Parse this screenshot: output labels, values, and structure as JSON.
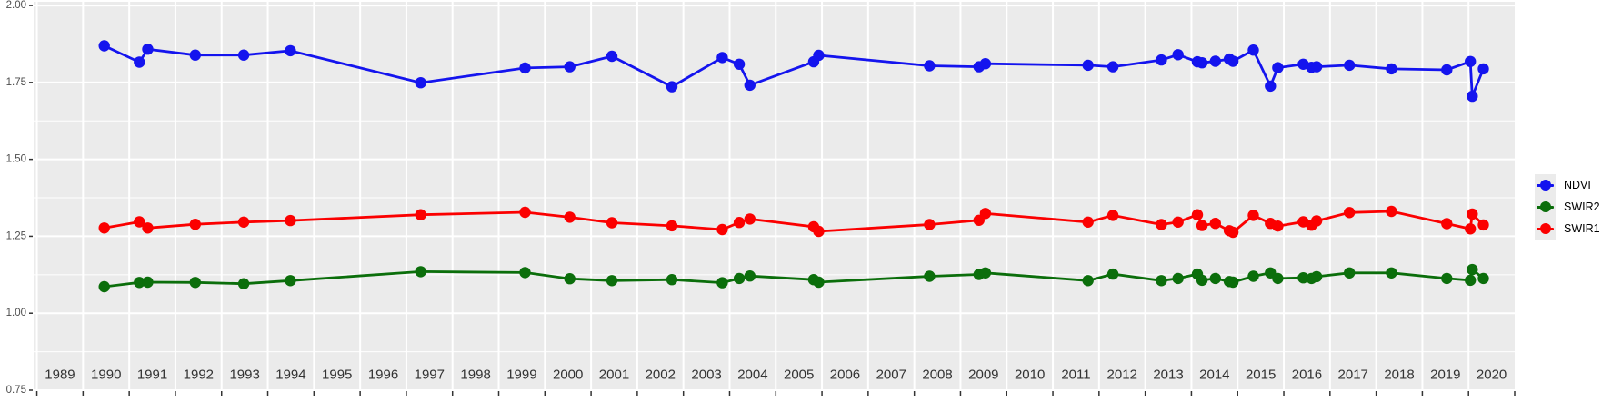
{
  "chart_data": {
    "type": "line",
    "title": "",
    "xlabel": "",
    "ylabel": "",
    "grid": true,
    "legend_position": "right",
    "panel_bg": "#ebebeb",
    "grid_color": "#ffffff",
    "axis_text_color": "#4d4d4d",
    "x_axis_text_color": "#333333",
    "tick_color": "#333333",
    "xlim_years": [
      1988.93,
      2021.0
    ],
    "ylim": [
      0.75,
      2.0
    ],
    "ylim_draw": [
      0.75,
      2.012
    ],
    "x_tick_labels": [
      "1989",
      "1990",
      "1991",
      "1992",
      "1993",
      "1994",
      "1995",
      "1996",
      "1997",
      "1998",
      "1999",
      "2000",
      "2001",
      "2002",
      "2003",
      "2004",
      "2005",
      "2006",
      "2007",
      "2008",
      "2009",
      "2010",
      "2011",
      "2012",
      "2013",
      "2014",
      "2015",
      "2016",
      "2017",
      "2018",
      "2019",
      "2020"
    ],
    "x_boundary_years": [
      1989,
      1990,
      1991,
      1992,
      1993,
      1994,
      1995,
      1996,
      1997,
      1998,
      1999,
      2000,
      2001,
      2002,
      2003,
      2004,
      2005,
      2006,
      2007,
      2008,
      2009,
      2010,
      2011,
      2012,
      2013,
      2014,
      2015,
      2016,
      2017,
      2018,
      2019,
      2020,
      2021
    ],
    "y_tick_values": [
      2.0,
      1.75,
      1.5,
      1.25,
      1.0,
      0.75
    ],
    "y_tick_labels": [
      "2.00",
      "1.75",
      "1.50",
      "1.25",
      "1.00",
      "0.75"
    ],
    "y_minor_values": [
      1.875,
      1.625,
      1.375,
      1.125,
      0.875
    ],
    "x": [
      1990.46,
      1991.22,
      1991.4,
      1992.43,
      1993.48,
      1994.49,
      1997.31,
      1999.57,
      2000.54,
      2001.45,
      2002.75,
      2003.84,
      2004.21,
      2004.44,
      2005.82,
      2005.93,
      2008.33,
      2009.4,
      2009.54,
      2011.76,
      2012.3,
      2013.35,
      2013.71,
      2014.13,
      2014.23,
      2014.52,
      2014.82,
      2014.9,
      2015.34,
      2015.71,
      2015.87,
      2016.42,
      2016.6,
      2016.71,
      2017.42,
      2018.33,
      2019.53,
      2020.04,
      2020.08,
      2020.32
    ],
    "series": [
      {
        "name": "NDVI",
        "color": "#1414ee",
        "values": [
          1.869,
          1.816,
          1.858,
          1.839,
          1.839,
          1.853,
          1.749,
          1.797,
          1.801,
          1.835,
          1.736,
          1.831,
          1.809,
          1.741,
          1.817,
          1.838,
          1.804,
          1.801,
          1.811,
          1.806,
          1.801,
          1.823,
          1.84,
          1.817,
          1.814,
          1.819,
          1.826,
          1.819,
          1.855,
          1.738,
          1.798,
          1.809,
          1.799,
          1.801,
          1.806,
          1.794,
          1.791,
          1.818,
          1.705,
          1.794
        ]
      },
      {
        "name": "SWIR2",
        "color": "#0b6e0b",
        "values": [
          1.086,
          1.1,
          1.101,
          1.1,
          1.096,
          1.106,
          1.135,
          1.132,
          1.112,
          1.106,
          1.109,
          1.099,
          1.113,
          1.121,
          1.109,
          1.101,
          1.12,
          1.126,
          1.131,
          1.106,
          1.127,
          1.106,
          1.113,
          1.127,
          1.107,
          1.113,
          1.103,
          1.101,
          1.12,
          1.131,
          1.113,
          1.115,
          1.113,
          1.119,
          1.131,
          1.131,
          1.113,
          1.107,
          1.142,
          1.113
        ]
      },
      {
        "name": "SWIR1",
        "color": "#fb0000",
        "values": [
          1.277,
          1.297,
          1.277,
          1.289,
          1.296,
          1.301,
          1.32,
          1.328,
          1.312,
          1.294,
          1.284,
          1.272,
          1.295,
          1.306,
          1.281,
          1.266,
          1.288,
          1.302,
          1.324,
          1.296,
          1.318,
          1.288,
          1.296,
          1.32,
          1.285,
          1.292,
          1.268,
          1.263,
          1.318,
          1.292,
          1.283,
          1.297,
          1.286,
          1.3,
          1.327,
          1.331,
          1.291,
          1.274,
          1.322,
          1.287
        ]
      }
    ],
    "legend_entries": [
      "NDVI",
      "SWIR2",
      "SWIR1"
    ]
  }
}
